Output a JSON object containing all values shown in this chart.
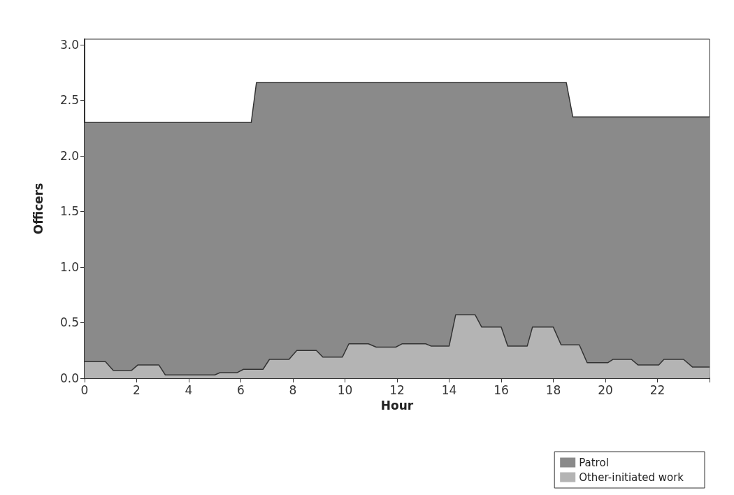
{
  "chart_data": {
    "type": "area",
    "xlabel": "Hour",
    "ylabel": "Officers",
    "xlim": [
      0,
      24
    ],
    "xticks": [
      0,
      2,
      4,
      6,
      8,
      10,
      12,
      14,
      16,
      18,
      20,
      22,
      {
        "value": 24,
        "label": null
      }
    ],
    "ylim": [
      0,
      3.05
    ],
    "yticks": [
      {
        "value": 0,
        "label": "0.0"
      },
      {
        "value": 0.5,
        "label": "0.5"
      },
      {
        "value": 1,
        "label": "1.0"
      },
      {
        "value": 1.5,
        "label": "1.5"
      },
      {
        "value": 2,
        "label": "2.0"
      },
      {
        "value": 2.5,
        "label": "2.5"
      },
      {
        "value": 3,
        "label": "3.0"
      }
    ],
    "grid": false,
    "legend": "bottom right",
    "series": [
      {
        "name": "Patrol",
        "color": "#8a8a8a",
        "x": [
          0,
          6.4,
          6.6,
          18.5,
          18.75,
          24
        ],
        "values": [
          2.3,
          2.3,
          2.66,
          2.66,
          2.35,
          2.35
        ]
      },
      {
        "name": "Other-initiated work",
        "color": "#b4b4b4",
        "x": [
          0,
          0.8,
          1.1,
          1.8,
          2.05,
          2.85,
          3.1,
          5.0,
          5.2,
          5.85,
          6.1,
          6.85,
          7.1,
          7.85,
          8.15,
          8.9,
          9.15,
          9.9,
          10.15,
          10.9,
          11.2,
          11.95,
          12.2,
          13.1,
          13.3,
          14.0,
          14.25,
          15.0,
          15.25,
          16.0,
          16.25,
          17.0,
          17.2,
          18.0,
          18.3,
          19.0,
          19.3,
          20.1,
          20.3,
          21.0,
          21.25,
          22.05,
          22.25,
          23.0,
          23.35,
          24
        ],
        "values": [
          0.15,
          0.15,
          0.07,
          0.07,
          0.12,
          0.12,
          0.03,
          0.03,
          0.05,
          0.05,
          0.08,
          0.08,
          0.17,
          0.17,
          0.25,
          0.25,
          0.19,
          0.19,
          0.31,
          0.31,
          0.28,
          0.28,
          0.31,
          0.31,
          0.29,
          0.29,
          0.57,
          0.57,
          0.46,
          0.46,
          0.29,
          0.29,
          0.46,
          0.46,
          0.3,
          0.3,
          0.14,
          0.14,
          0.17,
          0.17,
          0.12,
          0.12,
          0.17,
          0.17,
          0.1,
          0.1
        ]
      }
    ]
  }
}
